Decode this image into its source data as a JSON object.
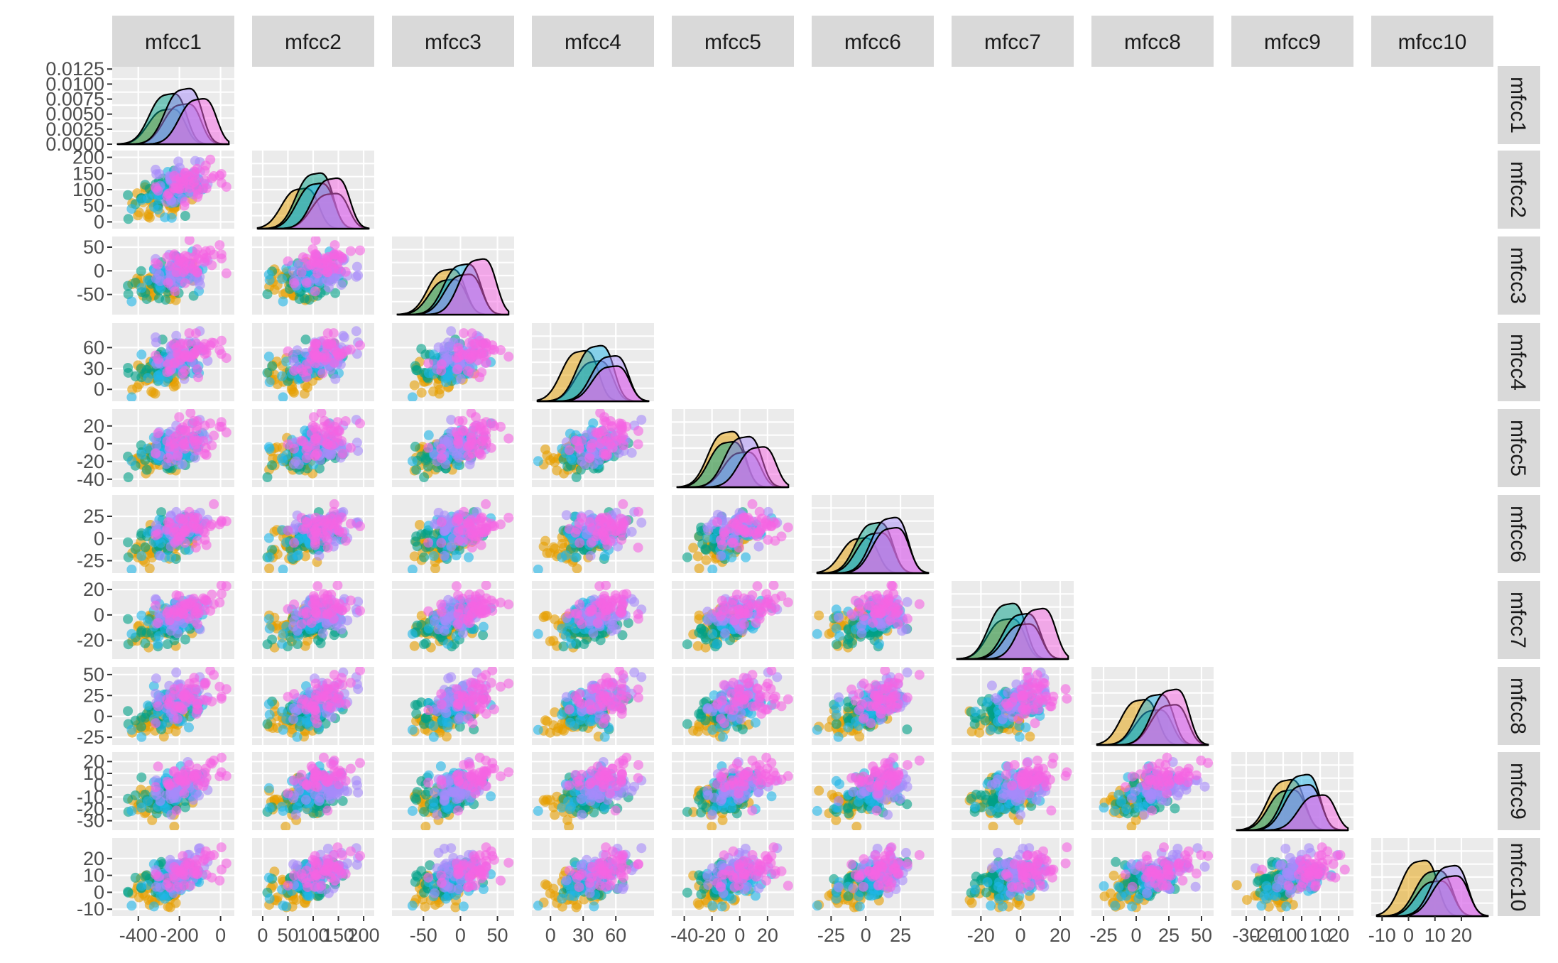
{
  "chart_data": {
    "type": "scatter",
    "layout": "pairs-lower-triangle",
    "variables": [
      "mfcc1",
      "mfcc2",
      "mfcc3",
      "mfcc4",
      "mfcc5",
      "mfcc6",
      "mfcc7",
      "mfcc8",
      "mfcc9",
      "mfcc10"
    ],
    "x_ticks": [
      [
        "-400",
        "-200",
        "0"
      ],
      [
        "0",
        "50",
        "100",
        "150",
        "200"
      ],
      [
        "-50",
        "0",
        "50"
      ],
      [
        "0",
        "30",
        "60"
      ],
      [
        "-40",
        "-20",
        "0",
        "20"
      ],
      [
        "-25",
        "0",
        "25"
      ],
      [
        "-20",
        "0",
        "20"
      ],
      [
        "-25",
        "0",
        "25",
        "50"
      ],
      [
        "-30",
        "-20",
        "-10",
        "0",
        "10",
        "20"
      ],
      [
        "-10",
        "0",
        "10",
        "20"
      ]
    ],
    "x_tick_values": [
      [
        -400,
        -200,
        0
      ],
      [
        0,
        50,
        100,
        150,
        200
      ],
      [
        -50,
        0,
        50
      ],
      [
        0,
        30,
        60
      ],
      [
        -40,
        -20,
        0,
        20
      ],
      [
        -25,
        0,
        25
      ],
      [
        -20,
        0,
        20
      ],
      [
        -25,
        0,
        25,
        50
      ],
      [
        -30,
        -20,
        -10,
        0,
        10,
        20
      ],
      [
        -10,
        0,
        10,
        20
      ]
    ],
    "y_ticks": [
      [
        "0.0000",
        "0.0025",
        "0.0050",
        "0.0075",
        "0.0100",
        "0.0125"
      ],
      [
        "0",
        "50",
        "100",
        "150",
        "200"
      ],
      [
        "-50",
        "0",
        "50"
      ],
      [
        "0",
        "30",
        "60"
      ],
      [
        "-40",
        "-20",
        "0",
        "20"
      ],
      [
        "-25",
        "0",
        "25"
      ],
      [
        "-20",
        "0",
        "20"
      ],
      [
        "-25",
        "0",
        "25",
        "50"
      ],
      [
        "-30",
        "-20",
        "-10",
        "0",
        "10",
        "20"
      ],
      [
        "-10",
        "0",
        "10",
        "20"
      ]
    ],
    "y_tick_values": [
      [
        0,
        0.0025,
        0.005,
        0.0075,
        0.01,
        0.0125
      ],
      [
        0,
        50,
        100,
        150,
        200
      ],
      [
        -50,
        0,
        50
      ],
      [
        0,
        30,
        60
      ],
      [
        -40,
        -20,
        0,
        20
      ],
      [
        -25,
        0,
        25
      ],
      [
        -20,
        0,
        20
      ],
      [
        -25,
        0,
        25,
        50
      ],
      [
        -30,
        -20,
        -10,
        0,
        10,
        20
      ],
      [
        -10,
        0,
        10,
        20
      ]
    ],
    "ranges": [
      [
        -500,
        40
      ],
      [
        -10,
        210
      ],
      [
        -85,
        65
      ],
      [
        -12,
        90
      ],
      [
        -45,
        35
      ],
      [
        -35,
        45
      ],
      [
        -32,
        24
      ],
      [
        -30,
        55
      ],
      [
        -35,
        25
      ],
      [
        -12,
        30
      ]
    ],
    "density_ylim": [
      0,
      0.013
    ],
    "group_colors": [
      "#E69F00",
      "#00A087",
      "#1FB5E8",
      "#A78BFA",
      "#F564E3"
    ],
    "diagonal": "density",
    "lower": "points",
    "upper": "blank",
    "grid": true
  }
}
